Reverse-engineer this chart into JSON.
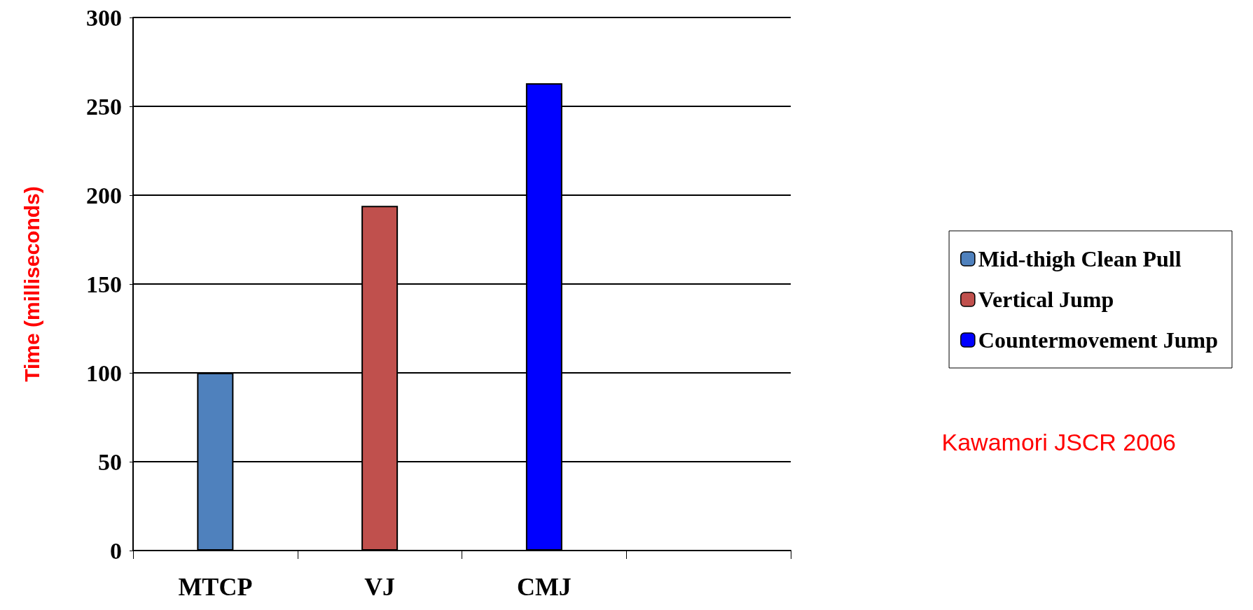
{
  "chart_data": {
    "type": "bar",
    "ylabel": "Time (milliseconds)",
    "categories": [
      "MTCP",
      "VJ",
      "CMJ",
      null
    ],
    "stacked": true,
    "series": [
      {
        "name": "Mid-thigh Clean Pull",
        "color": "#4f81bd",
        "values": [
          100,
          null,
          null,
          null
        ]
      },
      {
        "name": "Vertical Jump",
        "color": "#c0504d",
        "values": [
          null,
          194,
          null,
          null
        ]
      },
      {
        "name": "Countermovement Jump",
        "color": "#0000ff",
        "values": [
          null,
          null,
          263,
          null
        ]
      }
    ],
    "ylim": [
      0,
      300
    ],
    "yticks": [
      0,
      50,
      100,
      150,
      200,
      250,
      300
    ],
    "grid": "y",
    "legend": "right",
    "annotations": [
      "Kawamori JSCR 2006"
    ]
  }
}
